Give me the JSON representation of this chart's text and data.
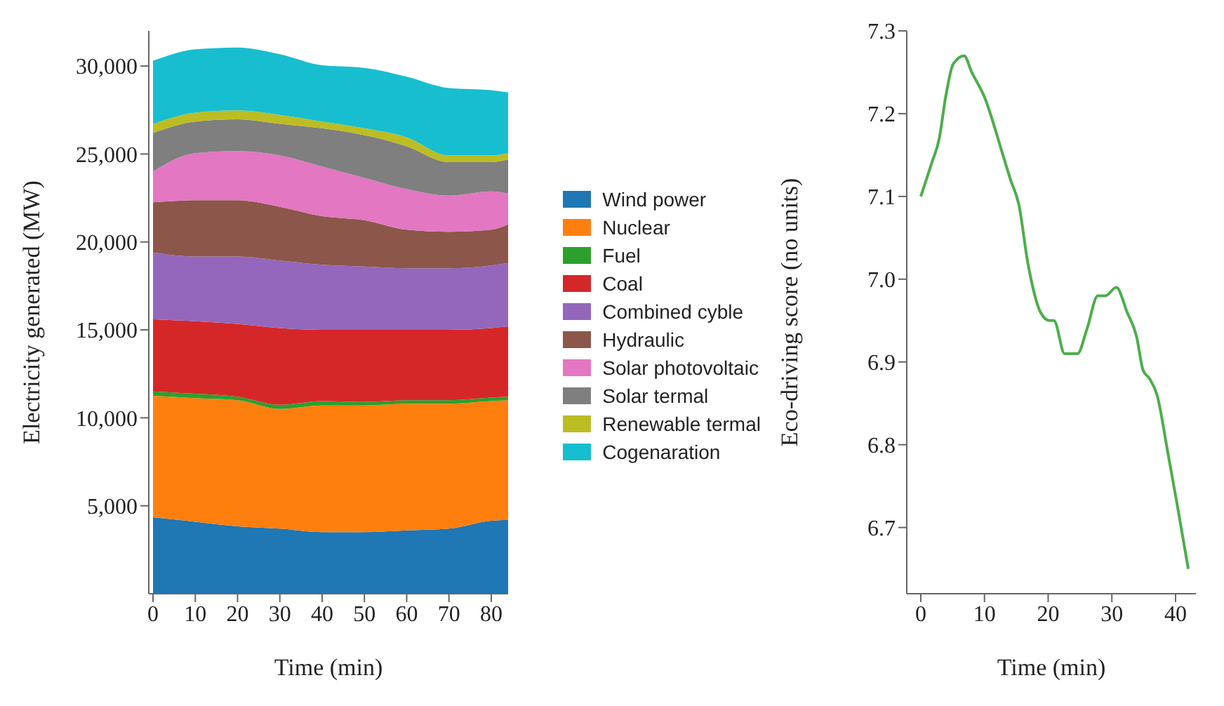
{
  "chart_data": [
    {
      "type": "area",
      "stacked": true,
      "xlabel": "Time (min)",
      "ylabel": "Electricity generated (MW)",
      "x": [
        0,
        10,
        20,
        30,
        40,
        50,
        60,
        70,
        80,
        84
      ],
      "xlim": [
        -1,
        84
      ],
      "xticks": [
        0,
        10,
        20,
        30,
        40,
        50,
        60,
        70,
        80
      ],
      "ylim": [
        0,
        32000
      ],
      "yticks": [
        {
          "value": 5000,
          "label": "5,000"
        },
        {
          "value": 10000,
          "label": "10,000"
        },
        {
          "value": 15000,
          "label": "15,000"
        },
        {
          "value": 20000,
          "label": "20,000"
        },
        {
          "value": 25000,
          "label": "25,000"
        },
        {
          "value": 30000,
          "label": "30,000"
        }
      ],
      "legend": "right",
      "series": [
        {
          "name": "Wind power",
          "color": "#1f77b4",
          "values": [
            4350,
            4090,
            3830,
            3700,
            3500,
            3500,
            3600,
            3700,
            4150,
            4200
          ]
        },
        {
          "name": "Nuclear",
          "color": "#ff7f0e",
          "values": [
            6900,
            7030,
            7170,
            6800,
            7200,
            7200,
            7200,
            7100,
            6800,
            6800
          ]
        },
        {
          "name": "Fuel",
          "color": "#2ca02c",
          "values": [
            250,
            250,
            200,
            240,
            250,
            200,
            200,
            200,
            200,
            200
          ]
        },
        {
          "name": "Coal",
          "color": "#d62728",
          "values": [
            4100,
            4120,
            4140,
            4360,
            4050,
            4100,
            4000,
            4000,
            3950,
            4000
          ]
        },
        {
          "name": "Combined cyble",
          "color": "#9467bd",
          "values": [
            3800,
            3680,
            3830,
            3840,
            3700,
            3600,
            3500,
            3500,
            3560,
            3600
          ]
        },
        {
          "name": "Hydraulic",
          "color": "#8c564b",
          "values": [
            2850,
            3200,
            3200,
            3060,
            2770,
            2640,
            2200,
            2080,
            2040,
            2200
          ]
        },
        {
          "name": "Solar photovoltaic",
          "color": "#e377c2",
          "values": [
            1750,
            2680,
            2800,
            2920,
            2820,
            2400,
            2300,
            2050,
            2170,
            1750
          ]
        },
        {
          "name": "Solar termal",
          "color": "#7f7f7f",
          "values": [
            2200,
            1790,
            1800,
            1790,
            2170,
            2430,
            2440,
            1910,
            1670,
            1950
          ]
        },
        {
          "name": "Renewable termal",
          "color": "#bcbd22",
          "values": [
            500,
            510,
            510,
            510,
            380,
            390,
            510,
            380,
            380,
            350
          ]
        },
        {
          "name": "Cogenaration",
          "color": "#17becf",
          "values": [
            3600,
            3600,
            3570,
            3450,
            3200,
            3440,
            3450,
            3830,
            3710,
            3450
          ]
        }
      ]
    },
    {
      "type": "line",
      "xlabel": "Time (min)",
      "ylabel": "Eco-driving score (no units)",
      "xlim": [
        -2.2,
        43.2
      ],
      "xticks": [
        0,
        10,
        20,
        30,
        40
      ],
      "ylim": [
        6.62,
        7.3
      ],
      "yticks": [
        {
          "value": 6.7,
          "label": "6.7"
        },
        {
          "value": 6.8,
          "label": "6.8"
        },
        {
          "value": 6.9,
          "label": "6.9"
        },
        {
          "value": 7,
          "label": "7.0"
        },
        {
          "value": 7.1,
          "label": "7.1"
        },
        {
          "value": 7.2,
          "label": "7.2"
        },
        {
          "value": 7.3,
          "label": "7.3"
        }
      ],
      "x": [
        0,
        1.7,
        2.9,
        3.9,
        5.1,
        6.8,
        8,
        10,
        12.9,
        14.1,
        15.4,
        16.8,
        18.8,
        20.2,
        20.9,
        22.6,
        24.6,
        26.1,
        27.8,
        29,
        30.7,
        32.4,
        33.9,
        34.9,
        35.9,
        37.1,
        38.8,
        40.2,
        42
      ],
      "series": [
        {
          "color": "#4cae4c",
          "values": [
            7.1,
            7.14,
            7.17,
            7.22,
            7.26,
            7.27,
            7.25,
            7.22,
            7.15,
            7.12,
            7.09,
            7.02,
            6.96,
            6.95,
            6.95,
            6.91,
            6.91,
            6.94,
            6.98,
            6.98,
            6.99,
            6.96,
            6.93,
            6.89,
            6.88,
            6.86,
            6.79,
            6.73,
            6.65
          ]
        }
      ]
    }
  ]
}
